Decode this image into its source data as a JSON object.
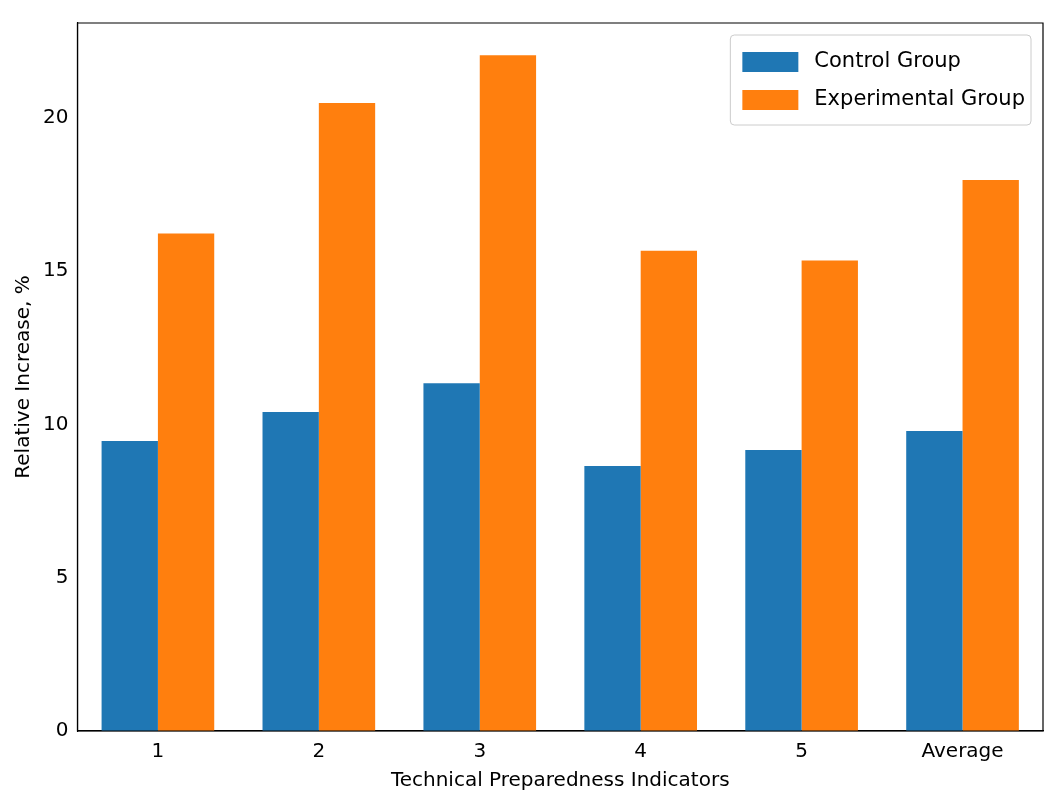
{
  "chart_data": {
    "type": "bar",
    "xlabel": "Technical Preparedness Indicators",
    "ylabel": "Relative Increase, %",
    "categories": [
      "1",
      "2",
      "3",
      "4",
      "5",
      "Average"
    ],
    "series": [
      {
        "name": "Control Group",
        "color": "#1f77b4",
        "values": [
          9.46,
          10.41,
          11.35,
          8.65,
          9.17,
          9.79
        ]
      },
      {
        "name": "Experimental Group",
        "color": "#ff7f0e",
        "values": [
          16.23,
          20.49,
          22.05,
          15.67,
          15.35,
          17.98
        ]
      }
    ],
    "ylim": [
      0,
      23.1
    ],
    "yticks": [
      0,
      5,
      10,
      15,
      20
    ],
    "grid": false,
    "legend": "top right"
  }
}
